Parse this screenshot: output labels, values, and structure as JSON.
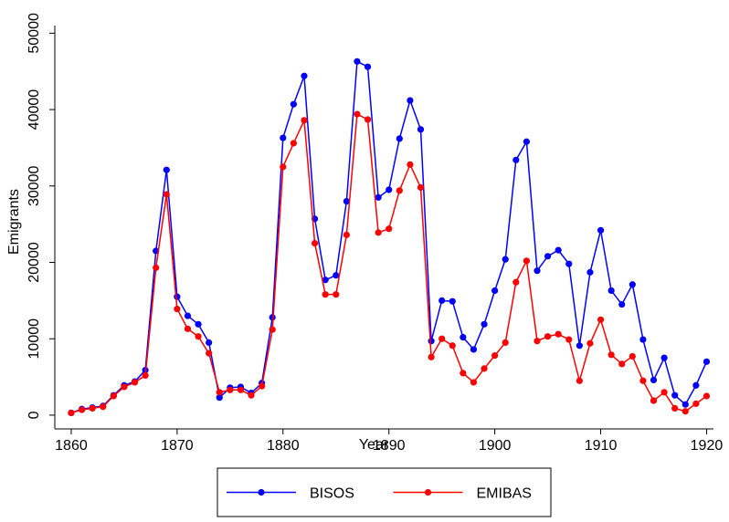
{
  "chart_data": {
    "type": "line",
    "x_label": "Year",
    "y_label": "Emigrants",
    "x": [
      1860,
      1861,
      1862,
      1863,
      1864,
      1865,
      1866,
      1867,
      1868,
      1869,
      1870,
      1871,
      1872,
      1873,
      1874,
      1875,
      1876,
      1877,
      1878,
      1879,
      1880,
      1881,
      1882,
      1883,
      1884,
      1885,
      1886,
      1887,
      1888,
      1889,
      1890,
      1891,
      1892,
      1893,
      1894,
      1895,
      1896,
      1897,
      1898,
      1899,
      1900,
      1901,
      1902,
      1903,
      1904,
      1905,
      1906,
      1907,
      1908,
      1909,
      1910,
      1911,
      1912,
      1913,
      1914,
      1915,
      1916,
      1917,
      1918,
      1919,
      1920
    ],
    "series": [
      {
        "name": "BISOS",
        "color": "#0000ff",
        "values": [
          300,
          800,
          1000,
          1200,
          2600,
          3900,
          4400,
          5900,
          21500,
          32100,
          15500,
          13000,
          11900,
          9500,
          2300,
          3600,
          3700,
          2900,
          4200,
          12800,
          36300,
          40700,
          44400,
          25700,
          17700,
          18300,
          28000,
          46300,
          45600,
          28500,
          29500,
          36200,
          41200,
          37400,
          9700,
          15000,
          14900,
          10200,
          8600,
          11900,
          16300,
          20400,
          33400,
          35800,
          18900,
          20800,
          21600,
          19800,
          9100,
          18700,
          24200,
          16300,
          14500,
          17100,
          9900,
          4600,
          7500,
          2600,
          1400,
          3900,
          7000
        ]
      },
      {
        "name": "EMIBAS",
        "color": "#ff0000",
        "values": [
          300,
          700,
          900,
          1100,
          2500,
          3700,
          4300,
          5200,
          19300,
          28900,
          13900,
          11300,
          10300,
          8100,
          3000,
          3300,
          3300,
          2600,
          3800,
          11200,
          32500,
          35600,
          38600,
          22500,
          15800,
          15800,
          23600,
          39400,
          38700,
          23900,
          24400,
          29400,
          32800,
          29800,
          7600,
          10000,
          9100,
          5500,
          4300,
          6100,
          7800,
          9500,
          17400,
          20200,
          9700,
          10300,
          10600,
          9900,
          4500,
          9400,
          12500,
          7900,
          6700,
          7700,
          4500,
          1900,
          3000,
          900,
          500,
          1500,
          2500
        ]
      }
    ],
    "xlim": [
      1858.45,
      1920.65
    ],
    "xticks": [
      1860,
      1870,
      1880,
      1890,
      1900,
      1910,
      1920
    ],
    "ylim": [
      -1800,
      51000
    ],
    "yticks": [
      0,
      10000,
      20000,
      30000,
      40000,
      50000
    ],
    "grid": false,
    "legend": "bottom"
  }
}
